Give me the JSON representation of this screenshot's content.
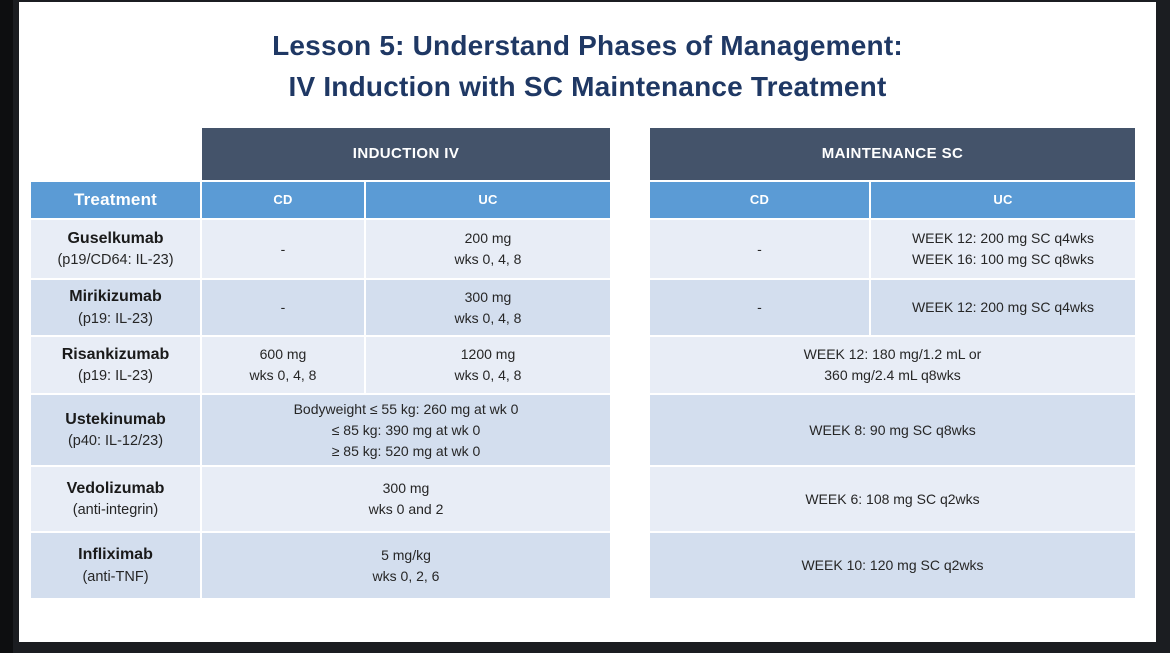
{
  "page": {
    "background": "#1b1d21",
    "slide_background": "#ffffff"
  },
  "colors": {
    "title_text": "#1f3864",
    "group_header_bg": "#44536a",
    "column_header_bg": "#5b9bd5",
    "row_light_bg": "#e8edf6",
    "row_dark_bg": "#d3deee",
    "cell_text": "#262626"
  },
  "title": {
    "line1": "Lesson 5: Understand Phases of Management:",
    "line2": "IV Induction with SC Maintenance Treatment"
  },
  "table": {
    "treatment_header": "Treatment",
    "induction": {
      "title": "INDUCTION IV",
      "cd_header": "CD",
      "uc_header": "UC"
    },
    "maintenance": {
      "title": "MAINTENANCE SC",
      "cd_header": "CD",
      "uc_header": "UC"
    },
    "rows": [
      {
        "name": "Guselkumab",
        "subname": "(p19/CD64: IL-23)",
        "induction": {
          "cd": "-",
          "uc": "200 mg\nwks 0, 4, 8"
        },
        "maintenance": {
          "cd": "-",
          "uc": "WEEK 12: 200 mg SC q4wks\nWEEK 16: 100 mg SC q8wks"
        }
      },
      {
        "name": "Mirikizumab",
        "subname": "(p19: IL-23)",
        "induction": {
          "cd": "-",
          "uc": "300 mg\nwks 0, 4, 8"
        },
        "maintenance": {
          "cd": "-",
          "uc": "WEEK 12: 200 mg SC q4wks"
        }
      },
      {
        "name": "Risankizumab",
        "subname": "(p19: IL-23)",
        "induction": {
          "cd": "600 mg\nwks 0, 4, 8",
          "uc": "1200 mg\nwks 0, 4, 8"
        },
        "maintenance": {
          "merged": "WEEK 12: 180 mg/1.2 mL or\n360 mg/2.4 mL q8wks"
        }
      },
      {
        "name": "Ustekinumab",
        "subname": "(p40: IL-12/23)",
        "induction": {
          "merged": "Bodyweight ≤ 55 kg: 260 mg at wk 0\n≤ 85 kg: 390 mg at wk 0\n≥ 85 kg: 520 mg at wk 0"
        },
        "maintenance": {
          "merged": "WEEK 8: 90 mg SC q8wks"
        }
      },
      {
        "name": "Vedolizumab",
        "subname": "(anti-integrin)",
        "induction": {
          "merged": "300 mg\nwks 0 and 2"
        },
        "maintenance": {
          "merged": "WEEK 6: 108 mg  SC q2wks"
        }
      },
      {
        "name": "Infliximab",
        "subname": "(anti-TNF)",
        "induction": {
          "merged": "5 mg/kg\nwks 0, 2, 6"
        },
        "maintenance": {
          "merged": "WEEK 10: 120 mg SC q2wks"
        }
      }
    ]
  }
}
